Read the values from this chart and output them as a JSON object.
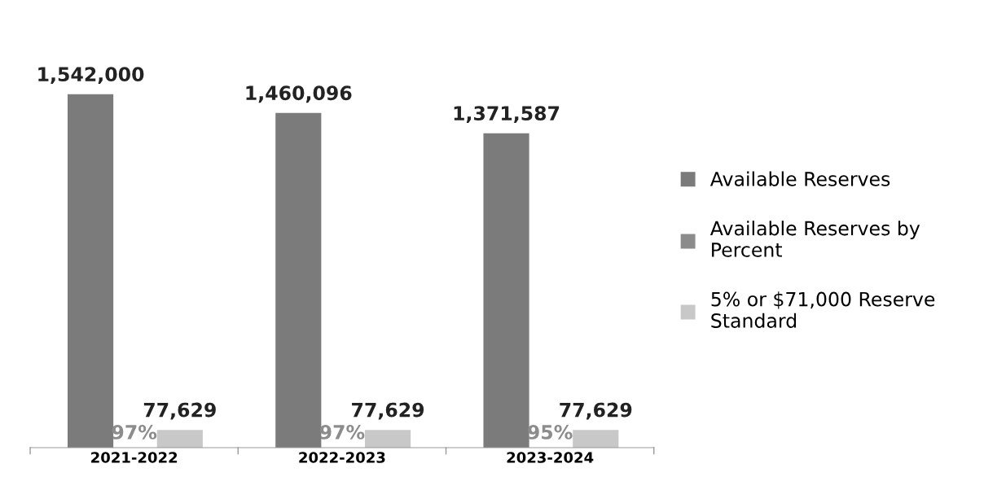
{
  "chart_data": {
    "type": "bar",
    "categories": [
      "2021-2022",
      "2022-2023",
      "2023-2024"
    ],
    "series": [
      {
        "name": "Available Reserves",
        "color": "#7b7b7b",
        "values": [
          1542000,
          1460096,
          1371587
        ],
        "value_labels": [
          "1,542,000",
          "1,460,096",
          "1,371,587"
        ]
      },
      {
        "name": "Available Reserves by Percent",
        "color": "#8c8c8c",
        "values": [
          97,
          97,
          95
        ],
        "value_labels": [
          "97%",
          "97%",
          "95%"
        ]
      },
      {
        "name": "5% or $71,000 Reserve Standard",
        "color": "#c8c8c8",
        "values": [
          77629,
          77629,
          77629
        ],
        "value_labels": [
          "77,629",
          "77,629",
          "77,629"
        ]
      }
    ],
    "tick_labels": "x",
    "grid": false,
    "legend": "right"
  }
}
